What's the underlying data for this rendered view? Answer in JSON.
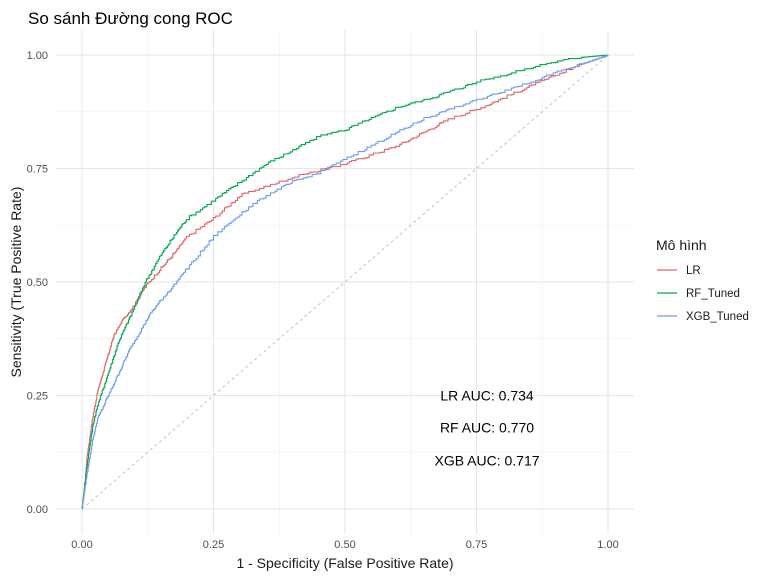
{
  "chart_data": {
    "type": "line",
    "title": "So sánh Đường cong ROC",
    "xlabel": "1 - Specificity (False Positive Rate)",
    "ylabel": "Sensitivity (True Positive Rate)",
    "xlim": [
      0,
      1
    ],
    "ylim": [
      0,
      1
    ],
    "x_ticks": [
      "0.00",
      "0.25",
      "0.50",
      "0.75",
      "1.00"
    ],
    "y_ticks": [
      "0.00",
      "0.25",
      "0.50",
      "0.75",
      "1.00"
    ],
    "grid": true,
    "legend": {
      "title": "Mô hình",
      "position": "right"
    },
    "reference_line": {
      "points": [
        [
          0,
          0
        ],
        [
          1,
          1
        ]
      ],
      "style": "dashed",
      "color": "#b3b3b3"
    },
    "series": [
      {
        "name": "LR",
        "color": "#e06666",
        "points": [
          [
            0,
            0
          ],
          [
            0.005,
            0.05
          ],
          [
            0.01,
            0.12
          ],
          [
            0.02,
            0.2
          ],
          [
            0.03,
            0.26
          ],
          [
            0.04,
            0.3
          ],
          [
            0.05,
            0.34
          ],
          [
            0.06,
            0.38
          ],
          [
            0.07,
            0.4
          ],
          [
            0.08,
            0.42
          ],
          [
            0.1,
            0.45
          ],
          [
            0.12,
            0.49
          ],
          [
            0.15,
            0.53
          ],
          [
            0.18,
            0.57
          ],
          [
            0.2,
            0.6
          ],
          [
            0.25,
            0.64
          ],
          [
            0.3,
            0.69
          ],
          [
            0.35,
            0.71
          ],
          [
            0.4,
            0.73
          ],
          [
            0.45,
            0.745
          ],
          [
            0.5,
            0.76
          ],
          [
            0.55,
            0.78
          ],
          [
            0.6,
            0.8
          ],
          [
            0.65,
            0.83
          ],
          [
            0.7,
            0.86
          ],
          [
            0.75,
            0.88
          ],
          [
            0.8,
            0.905
          ],
          [
            0.85,
            0.93
          ],
          [
            0.9,
            0.955
          ],
          [
            0.95,
            0.98
          ],
          [
            1.0,
            1.0
          ]
        ]
      },
      {
        "name": "RF_Tuned",
        "color": "#00a650",
        "points": [
          [
            0,
            0
          ],
          [
            0.005,
            0.05
          ],
          [
            0.01,
            0.1
          ],
          [
            0.02,
            0.18
          ],
          [
            0.03,
            0.23
          ],
          [
            0.05,
            0.3
          ],
          [
            0.07,
            0.37
          ],
          [
            0.09,
            0.42
          ],
          [
            0.12,
            0.5
          ],
          [
            0.15,
            0.56
          ],
          [
            0.18,
            0.61
          ],
          [
            0.2,
            0.64
          ],
          [
            0.25,
            0.68
          ],
          [
            0.3,
            0.72
          ],
          [
            0.35,
            0.76
          ],
          [
            0.4,
            0.79
          ],
          [
            0.45,
            0.82
          ],
          [
            0.5,
            0.835
          ],
          [
            0.55,
            0.86
          ],
          [
            0.6,
            0.885
          ],
          [
            0.65,
            0.9
          ],
          [
            0.7,
            0.92
          ],
          [
            0.75,
            0.94
          ],
          [
            0.8,
            0.955
          ],
          [
            0.85,
            0.97
          ],
          [
            0.9,
            0.985
          ],
          [
            0.95,
            0.995
          ],
          [
            1.0,
            1.0
          ]
        ]
      },
      {
        "name": "XGB_Tuned",
        "color": "#6d9eeb",
        "points": [
          [
            0,
            0
          ],
          [
            0.005,
            0.04
          ],
          [
            0.01,
            0.08
          ],
          [
            0.02,
            0.15
          ],
          [
            0.03,
            0.2
          ],
          [
            0.05,
            0.25
          ],
          [
            0.07,
            0.3
          ],
          [
            0.09,
            0.35
          ],
          [
            0.11,
            0.39
          ],
          [
            0.13,
            0.43
          ],
          [
            0.15,
            0.46
          ],
          [
            0.18,
            0.5
          ],
          [
            0.2,
            0.53
          ],
          [
            0.25,
            0.6
          ],
          [
            0.3,
            0.65
          ],
          [
            0.35,
            0.69
          ],
          [
            0.4,
            0.72
          ],
          [
            0.45,
            0.74
          ],
          [
            0.5,
            0.77
          ],
          [
            0.55,
            0.8
          ],
          [
            0.6,
            0.83
          ],
          [
            0.65,
            0.86
          ],
          [
            0.7,
            0.88
          ],
          [
            0.75,
            0.9
          ],
          [
            0.8,
            0.92
          ],
          [
            0.85,
            0.94
          ],
          [
            0.9,
            0.96
          ],
          [
            0.95,
            0.98
          ],
          [
            1.0,
            1.0
          ]
        ]
      }
    ],
    "annotations": [
      {
        "text": "LR AUC: 0.734",
        "x": 0.77,
        "y": 0.25
      },
      {
        "text": "RF AUC: 0.770",
        "x": 0.77,
        "y": 0.18
      },
      {
        "text": "XGB AUC: 0.717",
        "x": 0.77,
        "y": 0.107
      }
    ]
  }
}
